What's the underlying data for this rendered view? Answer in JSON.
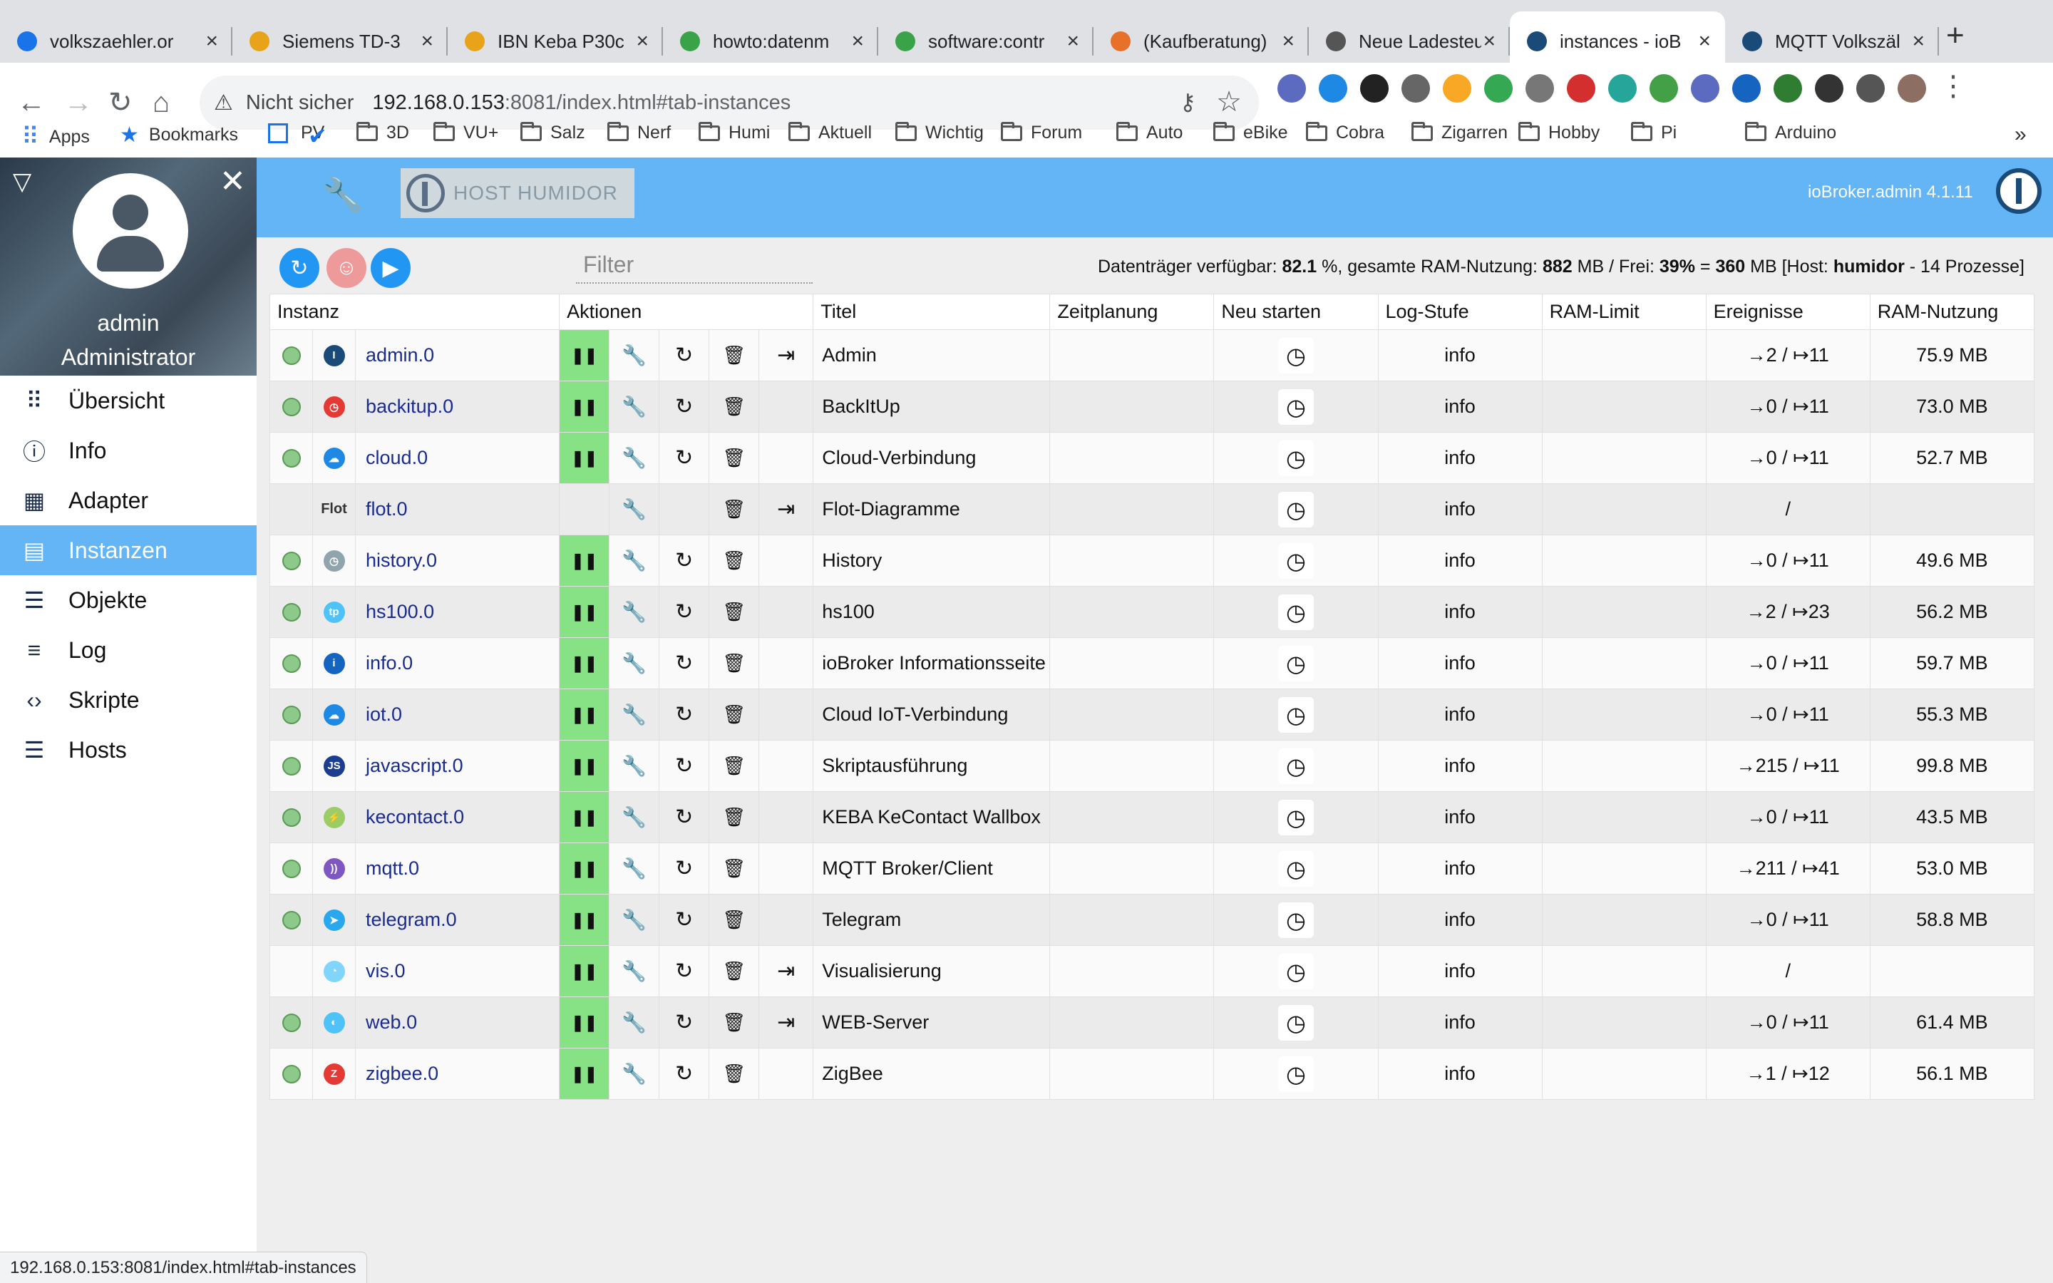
{
  "browser": {
    "tabs": [
      {
        "title": "volkszaehler.or",
        "color": "#1a73e8"
      },
      {
        "title": "Siemens TD-3",
        "color": "#e8a31a"
      },
      {
        "title": "IBN Keba P30c",
        "color": "#e8a31a"
      },
      {
        "title": "howto:datenm",
        "color": "#3aa34a"
      },
      {
        "title": "software:contr",
        "color": "#3aa34a"
      },
      {
        "title": "(Kaufberatung)",
        "color": "#e8712a"
      },
      {
        "title": "Neue Ladesteu",
        "color": "#555555"
      },
      {
        "title": "instances - ioB",
        "color": "#1a4a78"
      },
      {
        "title": "MQTT Volkszäl",
        "color": "#1a4a78"
      }
    ],
    "address": {
      "security": "Nicht sicher",
      "host": "192.168.0.153",
      "rest": ":8081/index.html#tab-instances"
    },
    "bookmarks": [
      "Apps",
      "Bookmarks",
      "PV",
      "3D",
      "VU+",
      "Salz",
      "Nerf",
      "Humi",
      "Aktuell",
      "Wichtig",
      "Forum",
      "Auto",
      "eBike",
      "Cobra",
      "Zigarren",
      "Hobby",
      "Pi",
      "Arduino"
    ],
    "more_bookmarks": "»",
    "status_url": "192.168.0.153:8081/index.html#tab-instances"
  },
  "app": {
    "host_button": "HOST HUMIDOR",
    "version": "ioBroker.admin 4.1.11",
    "user": {
      "name": "admin",
      "role": "Administrator"
    },
    "menu": [
      {
        "label": "Übersicht",
        "icon": "grid-icon"
      },
      {
        "label": "Info",
        "icon": "info-icon"
      },
      {
        "label": "Adapter",
        "icon": "store-icon"
      },
      {
        "label": "Instanzen",
        "icon": "instances-icon",
        "selected": true
      },
      {
        "label": "Objekte",
        "icon": "list-icon"
      },
      {
        "label": "Log",
        "icon": "log-icon"
      },
      {
        "label": "Skripte",
        "icon": "code-icon"
      },
      {
        "label": "Hosts",
        "icon": "hosts-icon"
      }
    ],
    "filter_placeholder": "Filter",
    "stats": {
      "pre1": "Datenträger verfügbar: ",
      "disk": "82.1",
      "pre2": " %, gesamte RAM-Nutzung: ",
      "ram": "882",
      "pre3": " MB / Frei: ",
      "free_pct": "39%",
      "pre4": " = ",
      "free_mb": "360",
      "pre5": " MB [Host: ",
      "host": "humidor",
      "pre6": " - 14 Prozesse]"
    }
  },
  "table": {
    "headers": [
      "Instanz",
      "Aktionen",
      "Titel",
      "Zeitplanung",
      "Neu starten",
      "Log-Stufe",
      "RAM-Limit",
      "Ereignisse",
      "RAM-Nutzung"
    ],
    "rows": [
      {
        "name": "admin.0",
        "title": "Admin",
        "log": "info",
        "events": "→2 / ↦11",
        "ram": "75.9 MB",
        "running": true,
        "link": true,
        "icon": "#1a4a78",
        "icon_label": "I"
      },
      {
        "name": "backitup.0",
        "title": "BackItUp",
        "log": "info",
        "events": "→0 / ↦11",
        "ram": "73.0 MB",
        "running": true,
        "link": false,
        "icon": "#e53935",
        "icon_label": "◷"
      },
      {
        "name": "cloud.0",
        "title": "Cloud-Verbindung",
        "log": "info",
        "events": "→0 / ↦11",
        "ram": "52.7 MB",
        "running": true,
        "link": false,
        "icon": "#1e88e5",
        "icon_label": "☁"
      },
      {
        "name": "flot.0",
        "title": "Flot-Diagramme",
        "log": "info",
        "events": "/",
        "ram": "",
        "running": false,
        "link": true,
        "icon": "",
        "icon_label": "Flot"
      },
      {
        "name": "history.0",
        "title": "History",
        "log": "info",
        "events": "→0 / ↦11",
        "ram": "49.6 MB",
        "running": true,
        "link": false,
        "icon": "#90a4ae",
        "icon_label": "◷"
      },
      {
        "name": "hs100.0",
        "title": "hs100",
        "log": "info",
        "events": "→2 / ↦23",
        "ram": "56.2 MB",
        "running": true,
        "link": false,
        "icon": "#4fc3f7",
        "icon_label": "tp"
      },
      {
        "name": "info.0",
        "title": "ioBroker Informationsseite",
        "log": "info",
        "events": "→0 / ↦11",
        "ram": "59.7 MB",
        "running": true,
        "link": false,
        "icon": "#1565c0",
        "icon_label": "i"
      },
      {
        "name": "iot.0",
        "title": "Cloud IoT-Verbindung",
        "log": "info",
        "events": "→0 / ↦11",
        "ram": "55.3 MB",
        "running": true,
        "link": false,
        "icon": "#1e88e5",
        "icon_label": "☁"
      },
      {
        "name": "javascript.0",
        "title": "Skriptausführung",
        "log": "info",
        "events": "→215 / ↦11",
        "ram": "99.8 MB",
        "running": true,
        "link": false,
        "icon": "#1a3d8f",
        "icon_label": "JS"
      },
      {
        "name": "kecontact.0",
        "title": "KEBA KeContact Wallbox",
        "log": "info",
        "events": "→0 / ↦11",
        "ram": "43.5 MB",
        "running": true,
        "link": false,
        "icon": "#9ccc65",
        "icon_label": "⚡"
      },
      {
        "name": "mqtt.0",
        "title": "MQTT Broker/Client",
        "log": "info",
        "events": "→211 / ↦41",
        "ram": "53.0 MB",
        "running": true,
        "link": false,
        "icon": "#7e57c2",
        "icon_label": "))"
      },
      {
        "name": "telegram.0",
        "title": "Telegram",
        "log": "info",
        "events": "→0 / ↦11",
        "ram": "58.8 MB",
        "running": true,
        "link": false,
        "icon": "#29a9eb",
        "icon_label": "➤"
      },
      {
        "name": "vis.0",
        "title": "Visualisierung",
        "log": "info",
        "events": "/",
        "ram": "",
        "running": false,
        "link": true,
        "icon": "#81d4fa",
        "icon_label": "◔",
        "dot": false,
        "paused_ok": true
      },
      {
        "name": "web.0",
        "title": "WEB-Server",
        "log": "info",
        "events": "→0 / ↦11",
        "ram": "61.4 MB",
        "running": true,
        "link": true,
        "icon": "#4fc3f7",
        "icon_label": "◐"
      },
      {
        "name": "zigbee.0",
        "title": "ZigBee",
        "log": "info",
        "events": "→1 / ↦12",
        "ram": "56.1 MB",
        "running": true,
        "link": false,
        "icon": "#e53935",
        "icon_label": "Z"
      }
    ]
  }
}
